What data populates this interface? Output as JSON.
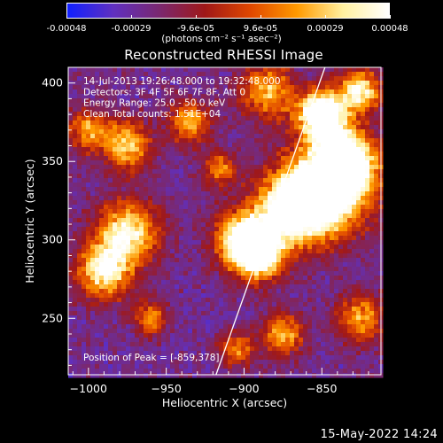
{
  "colorbar": {
    "ticks": [
      "-0.00048",
      "-0.00029",
      "-9.6e-05",
      "9.6e-05",
      "0.00029",
      "0.00048"
    ],
    "units": "(photons cm⁻² s⁻¹ asec⁻²)",
    "colors": [
      "#1020ff",
      "#6030c0",
      "#7a2870",
      "#a01818",
      "#e04800",
      "#ff9a00",
      "#fff0a0",
      "#ffffff"
    ]
  },
  "footer": "15-May-2022 14:24",
  "chart_data": {
    "type": "heatmap",
    "title": "Reconstructed RHESSI Image",
    "xlabel": "Heliocentric X (arcsec)",
    "ylabel": "Heliocentric Y (arcsec)",
    "xlim": [
      -1013,
      -812
    ],
    "ylim": [
      214,
      410
    ],
    "x_ticks": [
      -1000,
      -950,
      -900,
      -850
    ],
    "y_ticks": [
      250,
      300,
      350,
      400
    ],
    "x_tick_labels": [
      "−1000",
      "−950",
      "−900",
      "−850"
    ],
    "y_tick_labels": [
      "250",
      "300",
      "350",
      "400"
    ],
    "annotations": [
      "14-Jul-2013 19:26:48.000 to 19:32:48.000",
      "Detectors: 3F 4F 5F 6F 7F 8F, Att 0",
      "Energy Range: 25.0 - 50.0 keV",
      "Clean     Total counts: 1.51E+04"
    ],
    "peak_label": "Position of Peak = [-859,378]",
    "peak": [
      -859,
      378
    ],
    "limb_line": [
      [
        -918,
        214
      ],
      [
        -848,
        410
      ]
    ],
    "grid": false,
    "legend": "none"
  }
}
